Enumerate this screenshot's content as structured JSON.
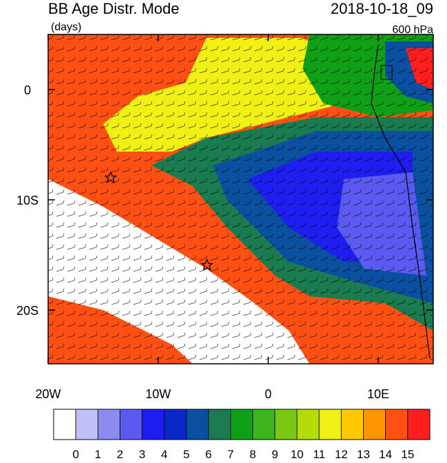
{
  "header": {
    "title": "BB Age Distr. Mode",
    "units": "(days)",
    "time": "2018-10-18_09",
    "level": "600 hPa"
  },
  "map": {
    "lat_ticks": [
      "0",
      "10S",
      "20S"
    ],
    "lon_ticks": [
      "20W",
      "10W",
      "0",
      "10E"
    ]
  },
  "colorbar": {
    "colors": [
      "#ffffff",
      "#c0c0f8",
      "#8c8cf0",
      "#5a5af0",
      "#1e1ef0",
      "#0a28c8",
      "#0a50a0",
      "#1a7a50",
      "#10a018",
      "#3cb41e",
      "#78c814",
      "#b4dc0a",
      "#f0f014",
      "#ffc800",
      "#ff9600",
      "#ff5014",
      "#ff1e1e"
    ],
    "labels": [
      "0",
      "1",
      "2",
      "3",
      "4",
      "5",
      "6",
      "7",
      "8",
      "9",
      "10",
      "11",
      "12",
      "13",
      "14",
      "15"
    ]
  }
}
